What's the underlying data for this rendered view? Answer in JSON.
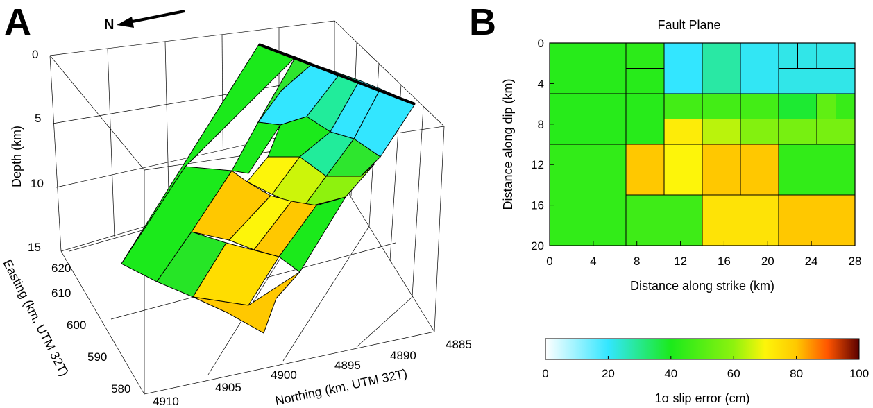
{
  "colors": {
    "cyan": "#33e6ff",
    "teal": "#21ec9b",
    "green_light": "#2ee62e",
    "green": "#1bea1b",
    "green_mid": "#26e526",
    "yellow_green": "#8ef20e",
    "lime": "#ccf50a",
    "yellow": "#fdf50a",
    "yellow_orange": "#ffdd00",
    "orange": "#ffc800",
    "edge": "#000000"
  },
  "chart_data": [
    {
      "type": "3d-fault-patches",
      "panel_label": "A",
      "north_arrow_label": "N",
      "zlabel": "Depth (km)",
      "ylabel": "Easting (km, UTM 32T)",
      "xlabel": "Northing (km, UTM 32T)",
      "depth_ticks": [
        "0",
        "5",
        "10",
        "15"
      ],
      "easting_ticks": [
        "620",
        "610",
        "600",
        "590",
        "580"
      ],
      "northing_ticks": [
        "4910",
        "4905",
        "4900",
        "4895",
        "4890",
        "4885"
      ],
      "depth_range": [
        0,
        15
      ],
      "easting_range": [
        580,
        620
      ],
      "northing_range": [
        4885,
        4910
      ],
      "grid": true
    },
    {
      "type": "heatmap",
      "panel_label": "B",
      "title": "Fault Plane",
      "xlabel": "Distance along strike (km)",
      "ylabel": "Distance along dip (km)",
      "xlim": [
        0,
        28
      ],
      "ylim": [
        0,
        20
      ],
      "x_ticks": [
        0,
        4,
        8,
        12,
        16,
        20,
        24,
        28
      ],
      "y_ticks": [
        0,
        4,
        8,
        12,
        16,
        20
      ],
      "patches": [
        {
          "x0": 0,
          "x1": 7,
          "y0": 0,
          "y1": 5,
          "value": 42
        },
        {
          "x0": 7,
          "x1": 10.5,
          "y0": 0,
          "y1": 2.5,
          "value": 43
        },
        {
          "x0": 7,
          "x1": 10.5,
          "y0": 2.5,
          "y1": 5,
          "value": 42
        },
        {
          "x0": 10.5,
          "x1": 14,
          "y0": 0,
          "y1": 5,
          "value": 20
        },
        {
          "x0": 14,
          "x1": 17.5,
          "y0": 0,
          "y1": 5,
          "value": 28
        },
        {
          "x0": 17.5,
          "x1": 21,
          "y0": 0,
          "y1": 5,
          "value": 21
        },
        {
          "x0": 21,
          "x1": 22.75,
          "y0": 0,
          "y1": 2.5,
          "value": 22
        },
        {
          "x0": 22.75,
          "x1": 24.5,
          "y0": 0,
          "y1": 2.5,
          "value": 22
        },
        {
          "x0": 24.5,
          "x1": 28,
          "y0": 0,
          "y1": 2.5,
          "value": 22
        },
        {
          "x0": 21,
          "x1": 28,
          "y0": 2.5,
          "y1": 5,
          "value": 22
        },
        {
          "x0": 0,
          "x1": 7,
          "y0": 5,
          "y1": 10,
          "value": 42
        },
        {
          "x0": 7,
          "x1": 10.5,
          "y0": 5,
          "y1": 10,
          "value": 42
        },
        {
          "x0": 10.5,
          "x1": 14,
          "y0": 5,
          "y1": 7.5,
          "value": 47
        },
        {
          "x0": 14,
          "x1": 17.5,
          "y0": 5,
          "y1": 7.5,
          "value": 47
        },
        {
          "x0": 17.5,
          "x1": 21,
          "y0": 5,
          "y1": 7.5,
          "value": 47
        },
        {
          "x0": 21,
          "x1": 24.5,
          "y0": 5,
          "y1": 7.5,
          "value": 38
        },
        {
          "x0": 24.5,
          "x1": 26.25,
          "y0": 5,
          "y1": 7.5,
          "value": 52
        },
        {
          "x0": 26.25,
          "x1": 28,
          "y0": 5,
          "y1": 7.5,
          "value": 45
        },
        {
          "x0": 10.5,
          "x1": 14,
          "y0": 7.5,
          "y1": 10,
          "value": 72
        },
        {
          "x0": 14,
          "x1": 17.5,
          "y0": 7.5,
          "y1": 10,
          "value": 64
        },
        {
          "x0": 17.5,
          "x1": 21,
          "y0": 7.5,
          "y1": 10,
          "value": 58
        },
        {
          "x0": 21,
          "x1": 24.5,
          "y0": 7.5,
          "y1": 10,
          "value": 56
        },
        {
          "x0": 24.5,
          "x1": 28,
          "y0": 7.5,
          "y1": 10,
          "value": 56
        },
        {
          "x0": 0,
          "x1": 7,
          "y0": 10,
          "y1": 20,
          "value": 44
        },
        {
          "x0": 7,
          "x1": 10.5,
          "y0": 10,
          "y1": 15,
          "value": 80
        },
        {
          "x0": 10.5,
          "x1": 14,
          "y0": 10,
          "y1": 15,
          "value": 70
        },
        {
          "x0": 14,
          "x1": 17.5,
          "y0": 10,
          "y1": 15,
          "value": 80
        },
        {
          "x0": 17.5,
          "x1": 21,
          "y0": 10,
          "y1": 15,
          "value": 80
        },
        {
          "x0": 21,
          "x1": 28,
          "y0": 10,
          "y1": 15,
          "value": 44
        },
        {
          "x0": 7,
          "x1": 14,
          "y0": 15,
          "y1": 20,
          "value": 46
        },
        {
          "x0": 14,
          "x1": 21,
          "y0": 15,
          "y1": 20,
          "value": 74
        },
        {
          "x0": 21,
          "x1": 28,
          "y0": 15,
          "y1": 20,
          "value": 80
        }
      ]
    },
    {
      "type": "colorbar",
      "label": "1σ slip error (cm)",
      "range": [
        0,
        100
      ],
      "ticks": [
        0,
        20,
        40,
        60,
        80,
        100
      ],
      "stops": [
        {
          "value": 0,
          "color": "#ffffff"
        },
        {
          "value": 20,
          "color": "#33e6ff"
        },
        {
          "value": 40,
          "color": "#1bea1b"
        },
        {
          "value": 60,
          "color": "#8ef20e"
        },
        {
          "value": 70,
          "color": "#fdf50a"
        },
        {
          "value": 80,
          "color": "#ffc800"
        },
        {
          "value": 90,
          "color": "#ff5500"
        },
        {
          "value": 100,
          "color": "#5a0000"
        }
      ]
    }
  ]
}
